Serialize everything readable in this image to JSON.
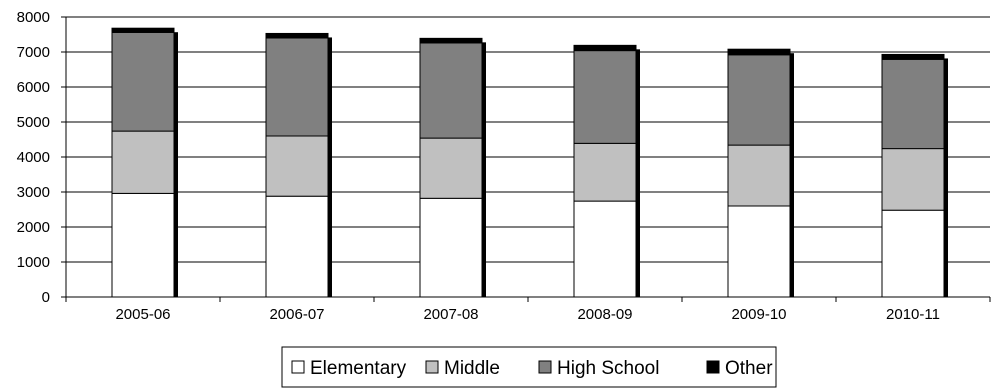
{
  "chart_data": {
    "type": "bar",
    "stacked": true,
    "categories": [
      "2005-06",
      "2006-07",
      "2007-08",
      "2008-09",
      "2009-10",
      "2010-11"
    ],
    "series": [
      {
        "name": "Elementary",
        "color": "#ffffff",
        "values": [
          2960,
          2880,
          2820,
          2740,
          2600,
          2480
        ]
      },
      {
        "name": "Middle",
        "color": "#c0c0c0",
        "values": [
          1780,
          1720,
          1720,
          1650,
          1740,
          1760
        ]
      },
      {
        "name": "High School",
        "color": "#808080",
        "values": [
          2820,
          2800,
          2720,
          2650,
          2580,
          2550
        ]
      },
      {
        "name": "Other",
        "color": "#000000",
        "values": [
          120,
          130,
          130,
          150,
          160,
          140
        ]
      }
    ],
    "yticks": [
      0,
      1000,
      2000,
      3000,
      4000,
      5000,
      6000,
      7000,
      8000
    ],
    "ylim": [
      0,
      8000
    ],
    "grid": true,
    "legend_position": "bottom",
    "title": "",
    "xlabel": "",
    "ylabel": ""
  }
}
